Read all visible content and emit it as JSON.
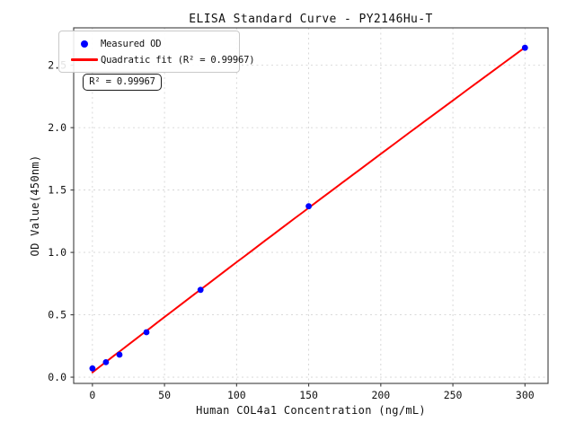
{
  "figure": {
    "background": "#ffffff",
    "text_color": "#111111",
    "grid_color": "#d4d4d4",
    "spine_color": "#3c3c3c"
  },
  "chart_data": {
    "type": "scatter",
    "title": "ELISA Standard Curve - PY2146Hu-T",
    "xlabel": "Human COL4a1 Concentration (ng/mL)",
    "ylabel": "OD Value(450nm)",
    "xlim": [
      -13,
      316
    ],
    "ylim": [
      -0.05,
      2.8
    ],
    "xticks": [
      0,
      50,
      100,
      150,
      200,
      250,
      300
    ],
    "xtick_labels": [
      "0",
      "50",
      "100",
      "150",
      "200",
      "250",
      "300"
    ],
    "yticks": [
      0.0,
      0.5,
      1.0,
      1.5,
      2.0,
      2.5
    ],
    "ytick_labels": [
      "0.0",
      "0.5",
      "1.0",
      "1.5",
      "2.0",
      "2.5"
    ],
    "grid": true,
    "grid_style": "dashed",
    "legend_position": "upper-left",
    "series": [
      {
        "name": "Measured OD",
        "type": "scatter",
        "color": "#0000ff",
        "x": [
          0,
          9.375,
          18.75,
          37.5,
          75,
          150,
          300
        ],
        "y": [
          0.07,
          0.12,
          0.18,
          0.36,
          0.7,
          1.37,
          2.64
        ]
      },
      {
        "name": "Quadratic fit (R² = 0.99967)",
        "type": "line",
        "fit": "quadratic",
        "color": "#ff0000",
        "r_squared": 0.99967
      }
    ],
    "annotation": "R² = 0.99967"
  }
}
